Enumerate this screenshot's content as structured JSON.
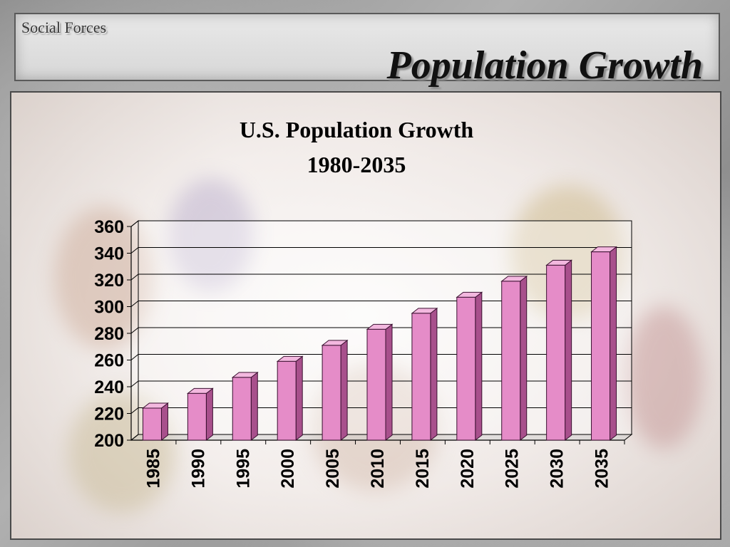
{
  "header": {
    "section_label": "Social Forces",
    "title": "Population Growth"
  },
  "colors": {
    "bar_front": "#e58cc8",
    "bar_side": "#a8508c",
    "bar_top": "#f3b8df",
    "grid": "#000000"
  },
  "chart_data": {
    "type": "bar",
    "title": "U.S. Population Growth",
    "subtitle": "1980-2035",
    "xlabel": "",
    "ylabel": "",
    "ylim": [
      200,
      360
    ],
    "yticks": [
      200,
      220,
      240,
      260,
      280,
      300,
      320,
      340,
      360
    ],
    "grid": true,
    "legend": "none",
    "categories": [
      "1985",
      "1990",
      "1995",
      "2000",
      "2005",
      "2010",
      "2015",
      "2020",
      "2025",
      "2030",
      "2035"
    ],
    "values": [
      224,
      235,
      247,
      259,
      271,
      283,
      295,
      307,
      319,
      331,
      341
    ]
  }
}
